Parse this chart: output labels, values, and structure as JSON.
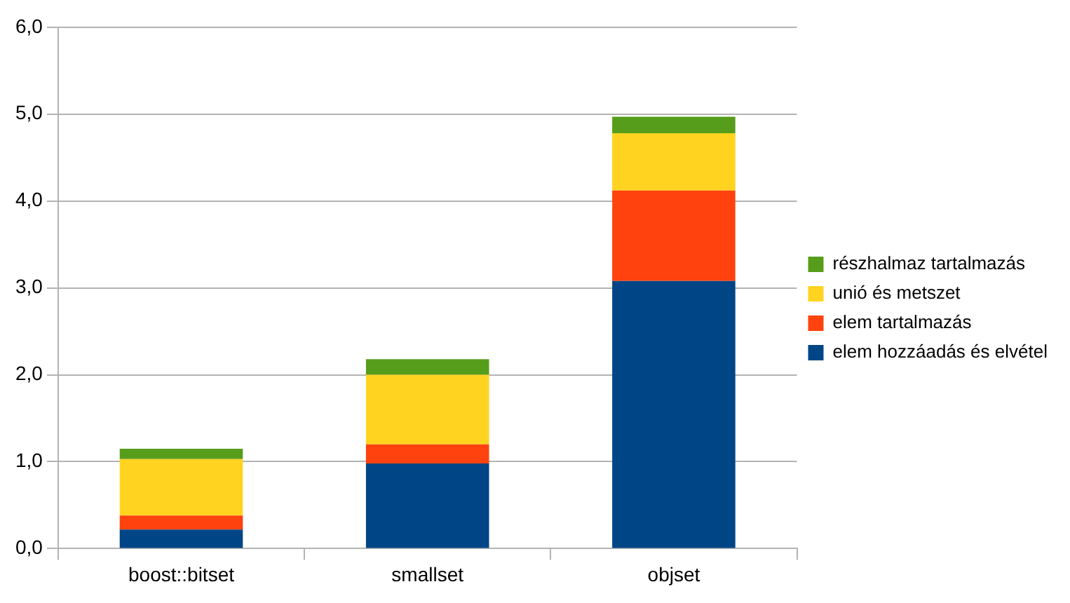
{
  "chart_data": {
    "type": "bar",
    "stacked": true,
    "categories": [
      "boost::bitset",
      "smallset",
      "objset"
    ],
    "series": [
      {
        "name": "elem hozzáadás és elvétel",
        "color": "#004586",
        "values": [
          0.22,
          0.98,
          3.08
        ]
      },
      {
        "name": "elem tartalmazás",
        "color": "#ff420e",
        "values": [
          0.16,
          0.22,
          1.04
        ]
      },
      {
        "name": "unió és metszet",
        "color": "#ffd320",
        "values": [
          0.65,
          0.8,
          0.66
        ]
      },
      {
        "name": "részhalmaz tartalmazás",
        "color": "#579d1c",
        "values": [
          0.12,
          0.18,
          0.19
        ]
      }
    ],
    "ylim": [
      0,
      6
    ],
    "yticks": [
      {
        "value": 0,
        "label": "0,0"
      },
      {
        "value": 1,
        "label": "1,0"
      },
      {
        "value": 2,
        "label": "2,0"
      },
      {
        "value": 3,
        "label": "3,0"
      },
      {
        "value": 4,
        "label": "4,0"
      },
      {
        "value": 5,
        "label": "5,0"
      },
      {
        "value": 6,
        "label": "6,0"
      }
    ],
    "grid": "y",
    "legend": "right"
  }
}
